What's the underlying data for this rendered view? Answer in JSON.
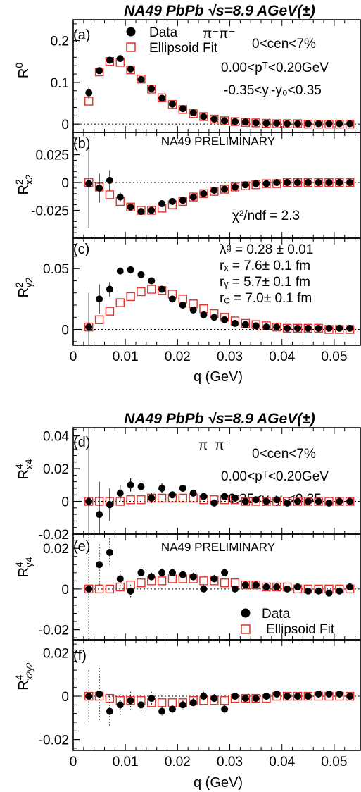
{
  "colors": {
    "data": "#000000",
    "fit": "#e8302a"
  },
  "legend_labels": {
    "data": "Data",
    "fit": "Ellipsoid Fit"
  },
  "figures": [
    {
      "title": "NA49 PbPb √s=8.9 AGeV(±)",
      "xlabel": "q (GeV)",
      "xticks": [
        "0",
        "0.01",
        "0.02",
        "0.03",
        "0.04",
        "0.05"
      ]
    },
    {
      "title": "NA49 PbPb √s=8.9 AGeV(±)",
      "xlabel": "q (GeV)",
      "xticks": [
        "0",
        "0.01",
        "0.02",
        "0.03",
        "0.04",
        "0.05"
      ]
    }
  ],
  "chart_data": [
    {
      "type": "scatter",
      "panel": "(a)",
      "ylabel": "R⁰",
      "xlim": [
        0,
        0.055
      ],
      "ylim": [
        -0.02,
        0.25
      ],
      "yticks": [
        {
          "v": 0,
          "t": "0"
        },
        {
          "v": 0.1,
          "t": "0.1"
        },
        {
          "v": 0.2,
          "t": "0.2"
        }
      ],
      "annotations": [
        "π⁻π⁻",
        "0<cen<7%",
        "0.00<pᵀ<0.20GeV",
        "-0.35<yₗ-y₀<0.35"
      ],
      "x": [
        0.003,
        0.005,
        0.007,
        0.009,
        0.011,
        0.013,
        0.015,
        0.017,
        0.019,
        0.021,
        0.023,
        0.025,
        0.027,
        0.029,
        0.031,
        0.033,
        0.035,
        0.037,
        0.039,
        0.041,
        0.043,
        0.045,
        0.047,
        0.049,
        0.051,
        0.053,
        0.055
      ],
      "series": [
        {
          "name": "Data",
          "values": [
            0.075,
            0.128,
            0.153,
            0.157,
            0.132,
            0.107,
            0.085,
            0.062,
            0.048,
            0.037,
            0.027,
            0.018,
            0.012,
            0.008,
            0.006,
            0.005,
            0.003,
            0.002,
            0.002,
            0.001,
            0.001,
            0.001,
            0.001,
            0.001,
            0.001,
            0.001,
            0.001
          ],
          "err": [
            0.015,
            0.006,
            0.004,
            0.004,
            0.004,
            0.003,
            0.003,
            0.003,
            0.003,
            0.002,
            0.002,
            0.002,
            0.002,
            0.002,
            0.002,
            0.001,
            0.001,
            0.001,
            0.001,
            0.001,
            0.001,
            0.001,
            0.001,
            0.001,
            0.001,
            0.001,
            0.001
          ]
        },
        {
          "name": "Ellipsoid Fit",
          "values": [
            0.055,
            0.125,
            0.15,
            0.148,
            0.13,
            0.108,
            0.084,
            0.063,
            0.047,
            0.035,
            0.025,
            0.018,
            0.012,
            0.008,
            0.006,
            0.004,
            0.003,
            0.002,
            0.001,
            0.001,
            0.001,
            0.0,
            0.0,
            0.0,
            0.0,
            0.0,
            0.0
          ]
        }
      ]
    },
    {
      "type": "scatter",
      "panel": "(b)",
      "ylabel": "R²x2",
      "preliminary": "NA49 PRELIMINARY",
      "xlim": [
        0,
        0.055
      ],
      "ylim": [
        -0.05,
        0.045
      ],
      "yticks": [
        {
          "v": -0.025,
          "t": "-0.025"
        },
        {
          "v": 0,
          "t": "0"
        },
        {
          "v": 0.025,
          "t": "0.025"
        }
      ],
      "annotations": [
        "χ²/ndf = 2.3"
      ],
      "x": [
        0.003,
        0.005,
        0.007,
        0.009,
        0.011,
        0.013,
        0.015,
        0.017,
        0.019,
        0.021,
        0.023,
        0.025,
        0.027,
        0.029,
        0.031,
        0.033,
        0.035,
        0.037,
        0.039,
        0.041,
        0.043,
        0.045,
        0.047,
        0.049,
        0.051,
        0.053,
        0.055
      ],
      "series": [
        {
          "name": "Data",
          "values": [
            -0.001,
            -0.005,
            0.002,
            -0.013,
            -0.022,
            -0.026,
            -0.025,
            -0.019,
            -0.017,
            -0.016,
            -0.013,
            -0.01,
            -0.007,
            -0.006,
            -0.004,
            -0.002,
            -0.001,
            -0.001,
            0.0,
            0.0,
            0.0,
            0.0,
            0.0,
            0.0,
            0.0,
            0.0,
            0.0
          ],
          "err": [
            0.04,
            0.013,
            0.009,
            0.004,
            0.003,
            0.002,
            0.002,
            0.002,
            0.002,
            0.002,
            0.002,
            0.002,
            0.001,
            0.001,
            0.001,
            0.001,
            0.001,
            0.001,
            0.001,
            0.001,
            0.001,
            0.001,
            0.001,
            0.001,
            0.001,
            0.001,
            0.001
          ]
        },
        {
          "name": "Ellipsoid Fit",
          "values": [
            0.0,
            -0.004,
            -0.011,
            -0.017,
            -0.022,
            -0.025,
            -0.025,
            -0.023,
            -0.02,
            -0.017,
            -0.013,
            -0.01,
            -0.008,
            -0.006,
            -0.004,
            -0.003,
            -0.002,
            -0.001,
            -0.001,
            0.0,
            0.0,
            0.0,
            0.0,
            0.0,
            0.0,
            0.0,
            0.0
          ]
        }
      ]
    },
    {
      "type": "scatter",
      "panel": "(c)",
      "ylabel": "R²y2",
      "xlim": [
        0,
        0.055
      ],
      "ylim": [
        -0.013,
        0.075
      ],
      "yticks": [
        {
          "v": 0,
          "t": "0"
        },
        {
          "v": 0.05,
          "t": "0.05"
        }
      ],
      "annotations": [
        "λᵍ = 0.28 ± 0.01",
        "rₓ = 7.6± 0.1 fm",
        "rᵧ = 5.7± 0.1 fm",
        "rᵩ = 7.0± 0.1 fm"
      ],
      "x": [
        0.003,
        0.005,
        0.007,
        0.009,
        0.011,
        0.013,
        0.015,
        0.017,
        0.019,
        0.021,
        0.023,
        0.025,
        0.027,
        0.029,
        0.031,
        0.033,
        0.035,
        0.037,
        0.039,
        0.041,
        0.043,
        0.045,
        0.047,
        0.049,
        0.051,
        0.053,
        0.055
      ],
      "series": [
        {
          "name": "Data",
          "values": [
            0.002,
            0.025,
            0.033,
            0.048,
            0.049,
            0.045,
            0.04,
            0.033,
            0.025,
            0.02,
            0.016,
            0.012,
            0.01,
            0.008,
            0.005,
            0.004,
            0.003,
            0.002,
            0.002,
            0.001,
            0.001,
            0.001,
            0.001,
            0.001,
            0.001,
            0.001,
            0.002
          ],
          "err": [
            0.028,
            0.012,
            0.006,
            0.003,
            0.003,
            0.002,
            0.002,
            0.002,
            0.002,
            0.002,
            0.002,
            0.002,
            0.002,
            0.001,
            0.001,
            0.001,
            0.001,
            0.001,
            0.001,
            0.001,
            0.001,
            0.001,
            0.001,
            0.001,
            0.001,
            0.001,
            0.001
          ]
        },
        {
          "name": "Ellipsoid Fit",
          "values": [
            0.002,
            0.008,
            0.015,
            0.022,
            0.027,
            0.031,
            0.033,
            0.032,
            0.029,
            0.025,
            0.021,
            0.017,
            0.013,
            0.01,
            0.007,
            0.005,
            0.004,
            0.003,
            0.002,
            0.001,
            0.001,
            0.001,
            0.001,
            0.0,
            0.0,
            0.0,
            0.0
          ]
        }
      ]
    },
    {
      "type": "scatter",
      "panel": "(d)",
      "ylabel": "R⁴x4",
      "xlim": [
        0,
        0.055
      ],
      "ylim": [
        -0.02,
        0.045
      ],
      "yticks": [
        {
          "v": -0.02,
          "t": "-0.02"
        },
        {
          "v": 0,
          "t": "0"
        },
        {
          "v": 0.02,
          "t": "0.02"
        },
        {
          "v": 0.04,
          "t": "0.04"
        }
      ],
      "annotations": [
        "π⁻π⁻",
        "0<cen<7%",
        "0.00<pᵀ<0.20GeV",
        "-0.35<yₗ-y₀<0.35"
      ],
      "x": [
        0.003,
        0.005,
        0.007,
        0.009,
        0.011,
        0.013,
        0.015,
        0.017,
        0.019,
        0.021,
        0.023,
        0.025,
        0.027,
        0.029,
        0.031,
        0.033,
        0.035,
        0.037,
        0.039,
        0.041,
        0.043,
        0.045,
        0.047,
        0.049,
        0.051,
        0.053,
        0.055
      ],
      "series": [
        {
          "name": "Data",
          "values": [
            0.0,
            -0.008,
            -0.002,
            0.005,
            0.01,
            0.009,
            0.002,
            0.008,
            0.004,
            0.008,
            0.005,
            0.003,
            -0.001,
            0.003,
            0.002,
            0.0,
            0.001,
            0.0,
            0.001,
            -0.001,
            0.0,
            0.0,
            0.0,
            -0.001,
            0.0,
            0.0,
            0.0
          ],
          "err": [
            0.045,
            0.02,
            0.01,
            0.005,
            0.004,
            0.003,
            0.003,
            0.003,
            0.002,
            0.002,
            0.002,
            0.002,
            0.002,
            0.002,
            0.002,
            0.002,
            0.001,
            0.001,
            0.001,
            0.001,
            0.001,
            0.001,
            0.001,
            0.001,
            0.001,
            0.001,
            0.001
          ]
        },
        {
          "name": "Ellipsoid Fit",
          "values": [
            0.0,
            0.0,
            0.0,
            0.0,
            0.001,
            0.001,
            0.002,
            0.002,
            0.002,
            0.002,
            0.002,
            0.001,
            0.001,
            0.001,
            0.001,
            0.0,
            0.0,
            0.0,
            0.0,
            0.0,
            0.0,
            0.0,
            0.0,
            0.0,
            0.0,
            0.0,
            0.0
          ]
        }
      ]
    },
    {
      "type": "scatter",
      "panel": "(e)",
      "ylabel": "R⁴y4",
      "preliminary": "NA49 PRELIMINARY",
      "xlim": [
        0,
        0.055
      ],
      "ylim": [
        -0.025,
        0.027
      ],
      "yticks": [
        {
          "v": -0.02,
          "t": "-0.02"
        },
        {
          "v": 0,
          "t": "0"
        },
        {
          "v": 0.02,
          "t": "0.02"
        }
      ],
      "x": [
        0.003,
        0.005,
        0.007,
        0.009,
        0.011,
        0.013,
        0.015,
        0.017,
        0.019,
        0.021,
        0.023,
        0.025,
        0.027,
        0.029,
        0.031,
        0.033,
        0.035,
        0.037,
        0.039,
        0.041,
        0.043,
        0.045,
        0.047,
        0.049,
        0.051,
        0.053,
        0.055
      ],
      "series": [
        {
          "name": "Data",
          "values": [
            0.0,
            0.012,
            0.018,
            0.005,
            -0.001,
            0.008,
            0.006,
            0.008,
            0.008,
            0.007,
            0.006,
            0.0,
            0.005,
            0.008,
            0.0,
            0.002,
            0.002,
            0.001,
            0.001,
            0.0,
            0.001,
            -0.001,
            -0.001,
            -0.002,
            -0.001,
            0.001,
            0.001
          ],
          "err": [
            0.035,
            0.01,
            0.007,
            0.004,
            0.003,
            0.003,
            0.002,
            0.002,
            0.002,
            0.002,
            0.002,
            0.002,
            0.002,
            0.002,
            0.001,
            0.001,
            0.001,
            0.001,
            0.001,
            0.001,
            0.001,
            0.001,
            0.001,
            0.001,
            0.001,
            0.001,
            0.001
          ]
        },
        {
          "name": "Ellipsoid Fit",
          "values": [
            0.0,
            0.0,
            0.0,
            0.001,
            0.002,
            0.003,
            0.004,
            0.004,
            0.005,
            0.005,
            0.005,
            0.004,
            0.004,
            0.003,
            0.003,
            0.002,
            0.002,
            0.001,
            0.001,
            0.001,
            0.0,
            0.0,
            0.0,
            0.0,
            0.0,
            0.0,
            0.0
          ]
        }
      ]
    },
    {
      "type": "scatter",
      "panel": "(f)",
      "ylabel": "R⁴x2y2",
      "xlim": [
        0,
        0.055
      ],
      "ylim": [
        -0.025,
        0.026
      ],
      "yticks": [
        {
          "v": -0.02,
          "t": "-0.02"
        },
        {
          "v": 0,
          "t": "0"
        },
        {
          "v": 0.02,
          "t": "0.02"
        }
      ],
      "x": [
        0.003,
        0.005,
        0.007,
        0.009,
        0.011,
        0.013,
        0.015,
        0.017,
        0.019,
        0.021,
        0.023,
        0.025,
        0.027,
        0.029,
        0.031,
        0.033,
        0.035,
        0.037,
        0.039,
        0.041,
        0.043,
        0.045,
        0.047,
        0.049,
        0.051,
        0.053,
        0.055
      ],
      "series": [
        {
          "name": "Data",
          "values": [
            0.0,
            0.001,
            -0.007,
            -0.004,
            -0.002,
            -0.004,
            -0.001,
            -0.007,
            -0.006,
            -0.004,
            -0.003,
            0.0,
            -0.001,
            -0.006,
            0.0,
            -0.001,
            -0.001,
            0.0,
            0.001,
            0.0,
            0.0,
            0.0,
            0.001,
            0.001,
            0.001,
            0.0,
            0.0
          ],
          "err": [
            0.012,
            0.012,
            0.007,
            0.005,
            0.004,
            0.003,
            0.003,
            0.002,
            0.002,
            0.002,
            0.002,
            0.002,
            0.002,
            0.002,
            0.001,
            0.001,
            0.001,
            0.001,
            0.001,
            0.001,
            0.001,
            0.001,
            0.001,
            0.001,
            0.001,
            0.001,
            0.001
          ]
        },
        {
          "name": "Ellipsoid Fit",
          "values": [
            0.0,
            0.0,
            -0.001,
            -0.002,
            -0.002,
            -0.002,
            -0.003,
            -0.003,
            -0.003,
            -0.003,
            -0.002,
            -0.002,
            -0.002,
            -0.002,
            -0.001,
            -0.001,
            -0.001,
            -0.001,
            0.0,
            0.0,
            0.0,
            0.0,
            0.0,
            0.0,
            0.0,
            0.0,
            0.0
          ]
        }
      ]
    }
  ]
}
